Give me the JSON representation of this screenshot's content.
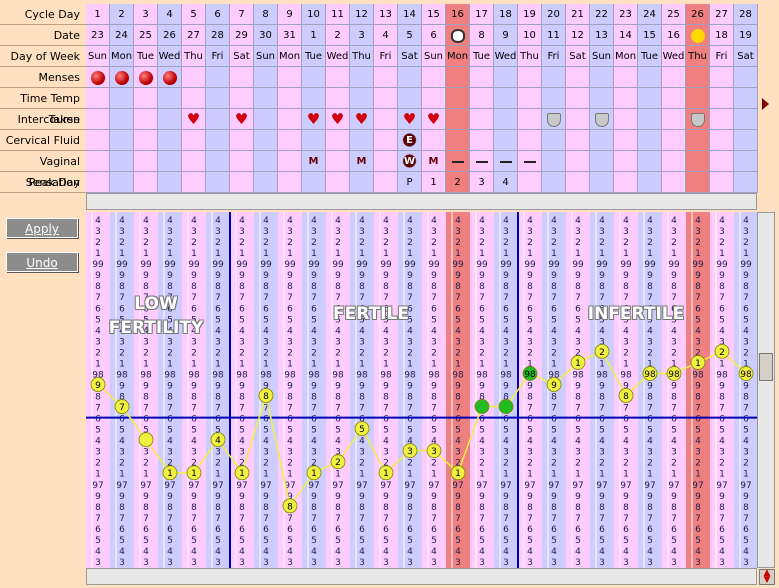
{
  "table": {
    "row_labels": [
      "Cycle Day",
      "Date",
      "Day of Week",
      "Menses",
      "Time Temp Taken",
      "Intercourse",
      "Cervical Fluid",
      "Vaginal Sensation",
      "Peak Day"
    ],
    "cycle_day": [
      1,
      2,
      3,
      4,
      5,
      6,
      7,
      8,
      9,
      10,
      11,
      12,
      13,
      14,
      15,
      16,
      17,
      18,
      19,
      20,
      21,
      22,
      23,
      24,
      25,
      26,
      27,
      28
    ],
    "date": [
      23,
      24,
      25,
      26,
      27,
      28,
      29,
      30,
      31,
      1,
      2,
      3,
      4,
      5,
      6,
      null,
      8,
      9,
      10,
      11,
      12,
      13,
      14,
      15,
      16,
      null,
      18,
      19
    ],
    "day_of_week": [
      "Sun",
      "Mon",
      "Tue",
      "Wed",
      "Thu",
      "Fri",
      "Sat",
      "Sun",
      "Mon",
      "Tue",
      "Wed",
      "Thu",
      "Fri",
      "Sat",
      "Sun",
      "Mon",
      "Tue",
      "Wed",
      "Thu",
      "Fri",
      "Sat",
      "Sun",
      "Mon",
      "Tue",
      "Wed",
      "Thu",
      "Fri",
      "Sat"
    ],
    "cervical_fluid": [
      null,
      null,
      null,
      null,
      null,
      null,
      null,
      null,
      null,
      null,
      null,
      null,
      null,
      "E",
      null,
      null,
      null,
      null,
      null,
      null,
      null,
      null,
      null,
      null,
      null,
      null,
      null,
      null
    ],
    "vaginal_sensation": [
      null,
      null,
      null,
      null,
      null,
      null,
      null,
      null,
      null,
      "M",
      null,
      "M",
      null,
      "W",
      "M",
      null,
      null,
      null,
      null,
      null,
      null,
      null,
      null,
      null,
      null,
      null,
      null,
      null
    ],
    "peak_day": [
      null,
      null,
      null,
      null,
      null,
      null,
      null,
      null,
      null,
      null,
      null,
      null,
      null,
      "P",
      "1",
      "2",
      "3",
      "4",
      null,
      null,
      null,
      null,
      null,
      null,
      null,
      null,
      null,
      null
    ]
  },
  "buttons": [
    "Apply",
    "Undo"
  ],
  "chart_data": {
    "type": "line",
    "zones": [
      "LOW FERTILITY",
      "FERTILE",
      "INFERTILE"
    ],
    "ylim": [
      96.3,
      99.4
    ],
    "yticks": [
      {
        "value": 99.4,
        "label": "4"
      },
      {
        "value": 99.3,
        "label": "3"
      },
      {
        "value": 99.2,
        "label": "2"
      },
      {
        "value": 99.1,
        "label": "1"
      },
      99,
      {
        "value": 98.9,
        "label": "9"
      },
      {
        "value": 98.8,
        "label": "8"
      },
      {
        "value": 98.7,
        "label": "7"
      },
      {
        "value": 98.6,
        "label": "6"
      },
      {
        "value": 98.5,
        "label": "5"
      },
      {
        "value": 98.4,
        "label": "4"
      },
      {
        "value": 98.3,
        "label": "3"
      },
      {
        "value": 98.2,
        "label": "2"
      },
      {
        "value": 98.1,
        "label": "1"
      },
      98,
      {
        "value": 97.9,
        "label": "9"
      },
      {
        "value": 97.8,
        "label": "8"
      },
      {
        "value": 97.7,
        "label": "7"
      },
      {
        "value": 97.6,
        "label": "6"
      },
      {
        "value": 97.5,
        "label": "5"
      },
      {
        "value": 97.4,
        "label": "4"
      },
      {
        "value": 97.3,
        "label": "3"
      },
      {
        "value": 97.2,
        "label": "2"
      },
      {
        "value": 97.1,
        "label": "1"
      },
      97,
      {
        "value": 96.9,
        "label": "9"
      },
      {
        "value": 96.8,
        "label": "8"
      },
      {
        "value": 96.7,
        "label": "7"
      },
      {
        "value": 96.6,
        "label": "6"
      },
      {
        "value": 96.5,
        "label": "5"
      },
      {
        "value": 96.4,
        "label": "4"
      },
      {
        "value": 96.3,
        "label": "3"
      }
    ],
    "coverline": 97.6,
    "series": [
      {
        "color": "#f0f040",
        "values": [
          97.9,
          97.7,
          97.4,
          97.1,
          97.1,
          97.4,
          97.1,
          97.8,
          96.8,
          97.1,
          97.2,
          97.5,
          97.1,
          97.3,
          97.3,
          97.1,
          97.7,
          97.7,
          98.0,
          97.9,
          98.1,
          98.2,
          97.8,
          98.0,
          98.0,
          98.1,
          98.2,
          98.0
        ],
        "value_labels": [
          "9",
          "7",
          null,
          "1",
          "1",
          "4",
          "1",
          "8",
          "8",
          "1",
          "2",
          "5",
          "1",
          "3",
          "3",
          "1",
          null,
          null,
          "98",
          "9",
          "1",
          "2",
          "8",
          "98",
          "98",
          "1",
          "2",
          "98"
        ],
        "point_colors": [
          "#f0f040",
          "#f0f040",
          "#f0f040",
          "#f0f040",
          "#f0f040",
          "#f0f040",
          "#f0f040",
          "#f0f040",
          "#f0f040",
          "#f0f040",
          "#f0f040",
          "#f0f040",
          "#f0f040",
          "#f0f040",
          "#f0f040",
          "#f0f040",
          "#22bb22",
          "#22bb22",
          "#22bb22",
          "#f0f040",
          "#f0f040",
          "#f0f040",
          "#f0f040",
          "#f0f040",
          "#f0f040",
          "#f0f040",
          "#f0f040",
          "#f0f040"
        ]
      }
    ]
  }
}
